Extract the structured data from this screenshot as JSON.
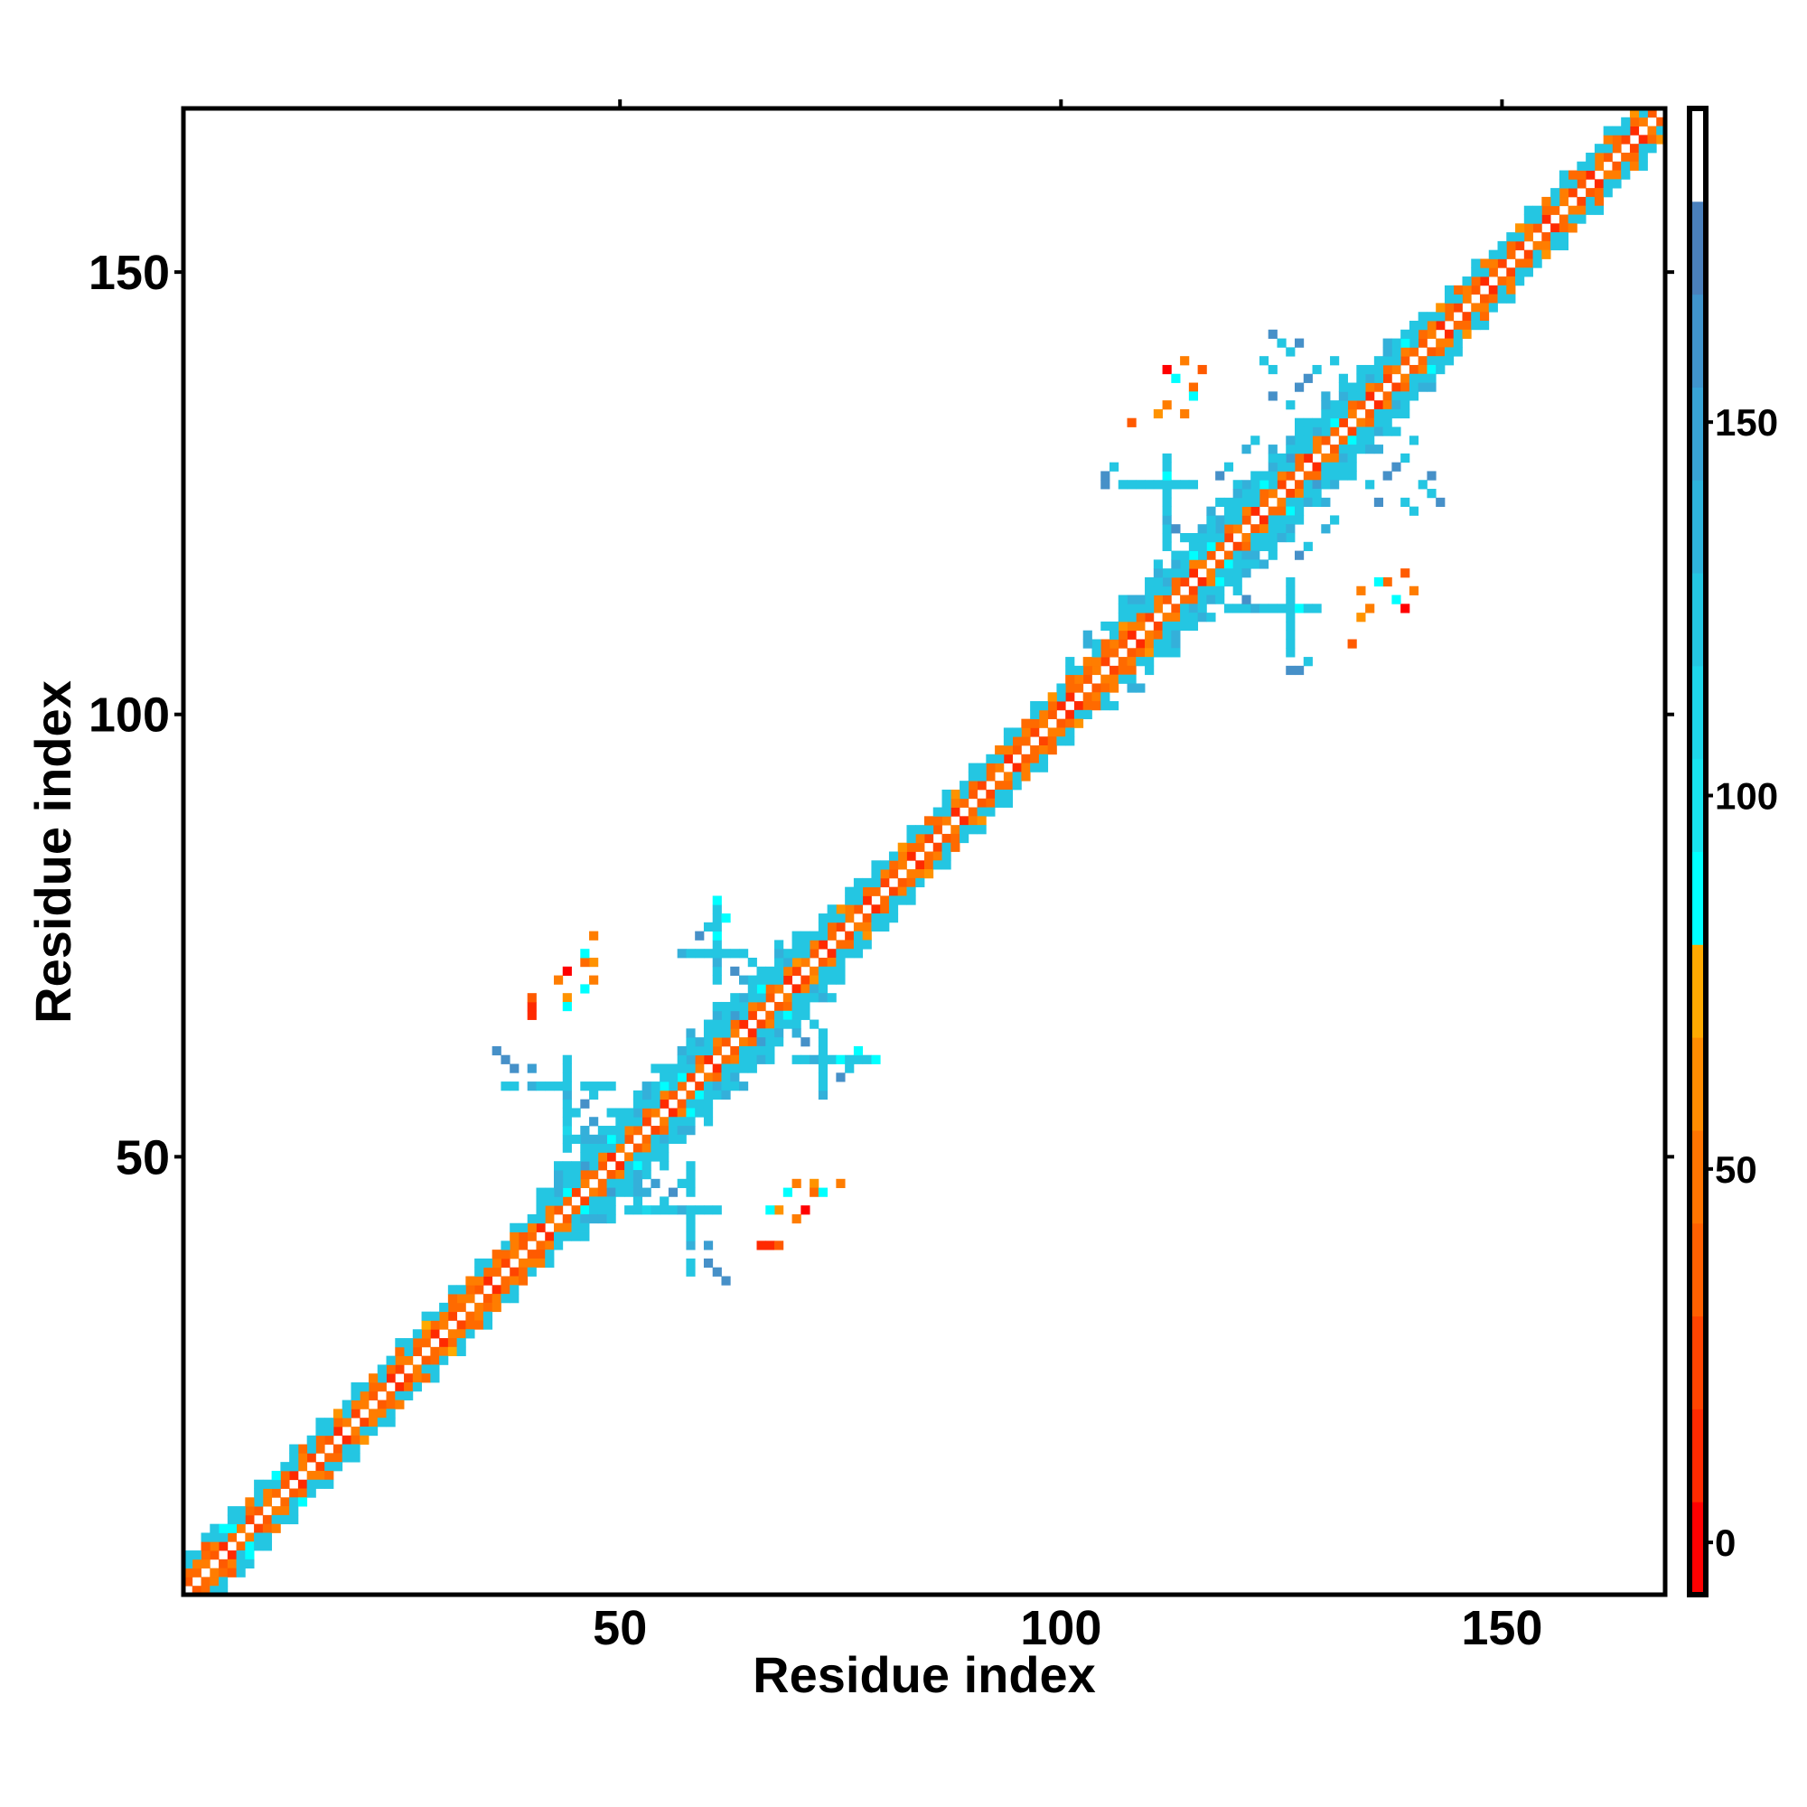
{
  "chart_data": {
    "type": "heatmap",
    "title": "",
    "xlabel": "Residue index",
    "ylabel": "Residue index",
    "n_residues": 168,
    "xlim": [
      0.5,
      168.5
    ],
    "ylim": [
      0.5,
      168.5
    ],
    "x_ticks": [
      50,
      100,
      150
    ],
    "y_ticks": [
      50,
      100,
      150
    ],
    "symmetric": true,
    "colorbar": {
      "range": [
        -7,
        192
      ],
      "ticks": [
        0,
        50,
        100,
        150
      ],
      "bin_colors_bottom_to_top": [
        "#ff0000",
        "#ff2a00",
        "#ff4400",
        "#ff6000",
        "#ff7400",
        "#ff8c00",
        "#ffaa00",
        "#00ffff",
        "#18e4f0",
        "#1ed6ea",
        "#24c6e2",
        "#2eb4dc",
        "#38a4d6",
        "#4094cc",
        "#4a80bc",
        "#ffffff"
      ]
    },
    "cell_code_colors": {
      "0": "#ff0000",
      "1": "#ff2a00",
      "2": "#ff4400",
      "3": "#ff5a00",
      "4": "#ff6a00",
      "5": "#ff7d00",
      "6": "#ff9300",
      "7": "#ffaa00",
      "8": "#00ffff",
      "9": "#18e4f0",
      "a": "#1ed6ea",
      "b": "#24c6e2",
      "c": "#34b0da",
      "d": "#3c9ed2",
      "e": "#4690c8"
    },
    "band_by_offset": {
      "1": "34531452354315243152534125341524531425341534254315342513425143512435125314253142351423514324513425311435243152534215342531452341534253142534351425314242531452315342153425",
      "2": "4545b8b4b5b4b5b4b4b554b45b45454545454535b5b8b4b5bb5b4b5b8b4b5b4b5b4b56b5b4b5b4b54545b4b5b4b4b545454b454545454b5b4b5b8b4b5b4b5b4b5b8b4b5b4b5b45b4b54b5b4b5b4b5b4b5b4b4b5b4b5b4",
      "3": "bb3b8bb5bb8bb4bbb6bbb5bb4bb7bb4b5bb4b5bbbbcbbdbb8bbcbb8bbcbbbbdbb8bbcbbbbb6bbbbbb6bb4bb6bbbb5bb4bb6b4b5b4b6bbbbcbb8bbcbbbb8bbdbbcbbbbbcbbb8bbb6b4bb5bbb6bb5bb4bbb5bb6bb4bb",
      "4": "b.bb.b..b...b..b...b....b..b..b..b...b..bbcbbbbcbbbbcbbbbbcbbbbcbbbbbbb.bb.bb.b...b...b..b...b..b...b..b.bbbcbbbcbbbbcbbbbbcbbbbbbbcbbbbcbbbb..b..b.....b...b....b...b....",
      "5": "........................................b.cb.bcb.b.bc.b.cb.bc.b.bb.c.b..............................b.c.b.bc.bc.b.bcb.b.cb.b.cbb.c.b.b..c.................................",
      "6": "..........................................b..c..b....b...c..b..c...b..................................c...b...b..b..c..b...c..b....b......................................."
    },
    "contacts": [
      [
        51,
        44,
        "b"
      ],
      [
        52,
        44,
        "b"
      ],
      [
        53,
        44,
        "a"
      ],
      [
        54,
        44,
        "b"
      ],
      [
        55,
        44,
        "b"
      ],
      [
        56,
        44,
        "b"
      ],
      [
        57,
        44,
        "c"
      ],
      [
        58,
        44,
        "b"
      ],
      [
        59,
        44,
        "b"
      ],
      [
        60,
        44,
        "b"
      ],
      [
        61,
        44,
        "b"
      ],
      [
        58,
        37,
        "b"
      ],
      [
        58,
        38,
        "b"
      ],
      [
        58,
        40,
        "c"
      ],
      [
        58,
        41,
        "b"
      ],
      [
        58,
        42,
        "b"
      ],
      [
        58,
        43,
        "b"
      ],
      [
        58,
        46,
        "b"
      ],
      [
        58,
        47,
        "b"
      ],
      [
        58,
        48,
        "b"
      ],
      [
        58,
        49,
        "b"
      ],
      [
        60,
        38,
        "e"
      ],
      [
        61,
        37,
        "e"
      ],
      [
        62,
        36,
        "e"
      ],
      [
        60,
        40,
        "d"
      ],
      [
        52,
        45,
        "b"
      ],
      [
        53,
        46,
        "c"
      ],
      [
        55,
        45,
        "b"
      ],
      [
        56,
        46,
        "e"
      ],
      [
        57,
        47,
        "b"
      ],
      [
        54,
        47,
        "d"
      ],
      [
        70,
        61,
        "b"
      ],
      [
        71,
        61,
        "b"
      ],
      [
        72,
        61,
        "c"
      ],
      [
        73,
        61,
        "b"
      ],
      [
        74,
        61,
        "b"
      ],
      [
        75,
        61,
        "8"
      ],
      [
        76,
        61,
        "b"
      ],
      [
        77,
        61,
        "b"
      ],
      [
        78,
        61,
        "b"
      ],
      [
        79,
        61,
        "8"
      ],
      [
        73,
        57,
        "c"
      ],
      [
        73,
        58,
        "b"
      ],
      [
        73,
        59,
        "b"
      ],
      [
        73,
        60,
        "b"
      ],
      [
        73,
        62,
        "b"
      ],
      [
        73,
        63,
        "b"
      ],
      [
        73,
        64,
        "b"
      ],
      [
        75,
        59,
        "e"
      ],
      [
        76,
        60,
        "b"
      ],
      [
        77,
        62,
        "8"
      ],
      [
        71,
        63,
        "e"
      ],
      [
        72,
        65,
        "b"
      ],
      [
        68,
        63,
        "c"
      ],
      [
        67,
        62,
        "b"
      ],
      [
        66,
        61,
        "e"
      ],
      [
        70,
        47,
        "5"
      ],
      [
        72,
        47,
        "6"
      ],
      [
        75,
        47,
        "5"
      ],
      [
        72,
        46,
        "4"
      ],
      [
        68,
        44,
        "6"
      ],
      [
        71,
        44,
        "0"
      ],
      [
        70,
        43,
        "5"
      ],
      [
        66,
        40,
        "1"
      ],
      [
        67,
        40,
        "1"
      ],
      [
        68,
        40,
        "3"
      ],
      [
        69,
        46,
        "8"
      ],
      [
        73,
        46,
        "8"
      ],
      [
        67,
        44,
        "8"
      ],
      [
        119,
        112,
        "b"
      ],
      [
        120,
        112,
        "b"
      ],
      [
        121,
        112,
        "b"
      ],
      [
        122,
        112,
        "c"
      ],
      [
        123,
        112,
        "b"
      ],
      [
        124,
        112,
        "b"
      ],
      [
        125,
        112,
        "b"
      ],
      [
        126,
        112,
        "b"
      ],
      [
        127,
        112,
        "8"
      ],
      [
        128,
        112,
        "b"
      ],
      [
        129,
        112,
        "b"
      ],
      [
        126,
        105,
        "e"
      ],
      [
        126,
        107,
        "b"
      ],
      [
        126,
        108,
        "b"
      ],
      [
        126,
        109,
        "b"
      ],
      [
        126,
        110,
        "b"
      ],
      [
        126,
        111,
        "b"
      ],
      [
        126,
        113,
        "b"
      ],
      [
        126,
        114,
        "b"
      ],
      [
        126,
        115,
        "b"
      ],
      [
        127,
        105,
        "e"
      ],
      [
        128,
        106,
        "b"
      ],
      [
        121,
        113,
        "e"
      ],
      [
        120,
        114,
        "c"
      ],
      [
        118,
        115,
        "e"
      ],
      [
        119,
        117,
        "b"
      ],
      [
        134,
        114,
        "5"
      ],
      [
        137,
        115,
        "4"
      ],
      [
        139,
        116,
        "3"
      ],
      [
        135,
        112,
        "5"
      ],
      [
        139,
        112,
        "0"
      ],
      [
        134,
        111,
        "6"
      ],
      [
        140,
        114,
        "5"
      ],
      [
        133,
        108,
        "3"
      ],
      [
        136,
        115,
        "8"
      ],
      [
        138,
        113,
        "8"
      ],
      [
        135,
        126,
        "b"
      ],
      [
        137,
        127,
        "e"
      ],
      [
        139,
        129,
        "b"
      ],
      [
        140,
        131,
        "b"
      ],
      [
        136,
        130,
        "c"
      ],
      [
        138,
        128,
        "e"
      ],
      [
        141,
        126,
        "b"
      ],
      [
        142,
        127,
        "e"
      ],
      [
        142,
        125,
        "b"
      ],
      [
        136,
        124,
        "e"
      ],
      [
        131,
        122,
        "b"
      ],
      [
        130,
        121,
        "c"
      ],
      [
        128,
        119,
        "b"
      ],
      [
        127,
        118,
        "e"
      ],
      [
        124,
        118,
        "b"
      ],
      [
        125,
        120,
        "c"
      ],
      [
        139,
        124,
        "b"
      ],
      [
        140,
        123,
        "b"
      ],
      [
        143,
        124,
        "e"
      ]
    ]
  }
}
